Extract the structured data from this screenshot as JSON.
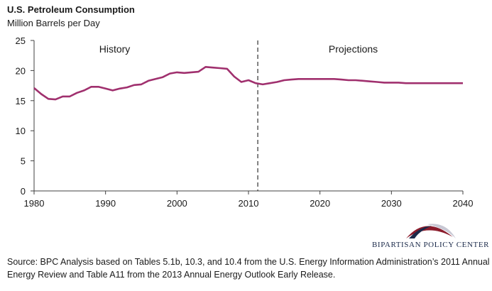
{
  "header": {
    "title": "U.S. Petroleum Consumption",
    "subtitle": "Million Barrels per Day"
  },
  "chart_data": {
    "type": "line",
    "title": "U.S. Petroleum Consumption",
    "ylabel": "Million Barrels per Day",
    "xlim": [
      1980,
      2040
    ],
    "ylim": [
      0,
      25
    ],
    "xticks": [
      1980,
      1990,
      2000,
      2010,
      2020,
      2030,
      2040
    ],
    "yticks": [
      0,
      5,
      10,
      15,
      20,
      25
    ],
    "grid": false,
    "color": "#a0306e",
    "divider": 2011.3,
    "annotations": [
      "History",
      "Projections"
    ],
    "series": [
      {
        "x": [
          1980,
          1981,
          1982,
          1983,
          1984,
          1985,
          1986,
          1987,
          1988,
          1989,
          1990,
          1991,
          1992,
          1993,
          1994,
          1995,
          1996,
          1997,
          1998,
          1999,
          2000,
          2001,
          2002,
          2003,
          2004,
          2005,
          2006,
          2007,
          2008,
          2009,
          2010,
          2011,
          2012,
          2013,
          2014,
          2015,
          2016,
          2017,
          2018,
          2019,
          2020,
          2021,
          2022,
          2023,
          2024,
          2025,
          2026,
          2027,
          2028,
          2029,
          2030,
          2031,
          2032,
          2033,
          2034,
          2035,
          2036,
          2037,
          2038,
          2039,
          2040
        ],
        "values": [
          17.1,
          16.1,
          15.3,
          15.2,
          15.7,
          15.7,
          16.3,
          16.7,
          17.3,
          17.3,
          17.0,
          16.7,
          17.0,
          17.2,
          17.6,
          17.7,
          18.3,
          18.6,
          18.9,
          19.5,
          19.7,
          19.6,
          19.7,
          19.8,
          20.6,
          20.5,
          20.4,
          20.3,
          19.0,
          18.1,
          18.4,
          17.9,
          17.7,
          17.9,
          18.1,
          18.4,
          18.5,
          18.6,
          18.6,
          18.6,
          18.6,
          18.6,
          18.6,
          18.5,
          18.4,
          18.4,
          18.3,
          18.2,
          18.1,
          18.0,
          18.0,
          18.0,
          17.9,
          17.9,
          17.9,
          17.9,
          17.9,
          17.9,
          17.9,
          17.9,
          17.9
        ]
      }
    ]
  },
  "logo": {
    "text": "Bipartisan Policy Center",
    "colors": [
      "#8b1c2c",
      "#c8c8d4",
      "#1b2a4a"
    ]
  },
  "source": "Source: BPC Analysis based on Tables 5.1b, 10.3, and 10.4 from the U.S. Energy Information Administration’s 2011 Annual Energy Review and Table A11 from the 2013 Annual Energy Outlook Early Release."
}
